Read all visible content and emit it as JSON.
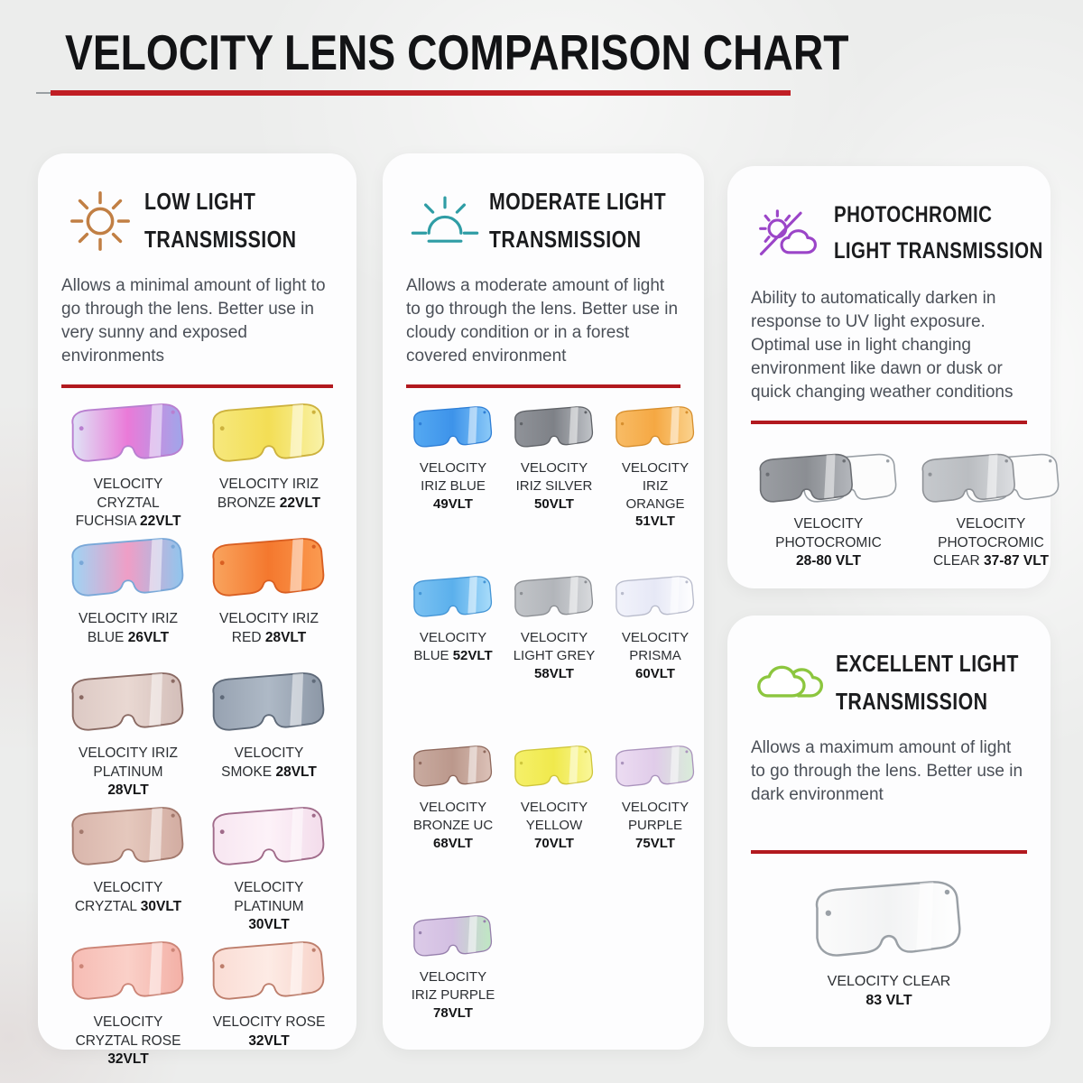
{
  "title": "VELOCITY LENS COMPARISON CHART",
  "accent_red": "#b2191f",
  "panels": [
    {
      "id": "low-light",
      "icon": "sun-icon",
      "icon_color": "#c17f44",
      "heading_lines": [
        "LOW LIGHT",
        "TRANSMISSION"
      ],
      "description": "Allows a minimal amount of light to go through the lens. Better use in very sunny and exposed environments",
      "columns": 2,
      "lenses": [
        {
          "name": "VELOCITY CRYZTAL FUCHSIA",
          "vlt": "22VLT",
          "fill": [
            "#dfe4f6",
            "#ea7ad8",
            "#9fa6ea"
          ],
          "outline": "#b97fd0"
        },
        {
          "name": "VELOCITY IRIZ BRONZE",
          "vlt": "22VLT",
          "fill": [
            "#f6e87e",
            "#f3de55",
            "#f9f2a8"
          ],
          "outline": "#cdb23e"
        },
        {
          "name": "VELOCITY IRIZ BLUE",
          "vlt": "26VLT",
          "fill": [
            "#9fd4f4",
            "#ef9ec6",
            "#8fc6ee"
          ],
          "outline": "#7aa8d8"
        },
        {
          "name": "VELOCITY IRIZ RED",
          "vlt": "28VLT",
          "fill": [
            "#f9a45e",
            "#f4782e",
            "#fb9b51"
          ],
          "outline": "#d95f22"
        },
        {
          "name": "VELOCITY IRIZ PLATINUM",
          "vlt": "28VLT",
          "fill": [
            "#dcc9c4",
            "#e9d8d2",
            "#d3beb9"
          ],
          "outline": "#8a6a63"
        },
        {
          "name": "VELOCITY SMOKE",
          "vlt": "28VLT",
          "fill": [
            "#97a2b1",
            "#aeb9c6",
            "#8c97a6"
          ],
          "outline": "#5f6a79"
        },
        {
          "name": "VELOCITY CRYZTAL",
          "vlt": "30VLT",
          "fill": [
            "#d9b6ac",
            "#e5c8bd",
            "#d2aca1"
          ],
          "outline": "#a3796d"
        },
        {
          "name": "VELOCITY PLATINUM",
          "vlt": "30VLT",
          "fill": [
            "#f7e6f1",
            "#fdf2f8",
            "#f3dceb"
          ],
          "outline": "#a06b8a"
        },
        {
          "name": "VELOCITY CRYZTAL ROSE",
          "vlt": "32VLT",
          "fill": [
            "#f6bcb4",
            "#fad0c8",
            "#f3b0a6"
          ],
          "outline": "#cc8577"
        },
        {
          "name": "VELOCITY ROSE",
          "vlt": "32VLT",
          "fill": [
            "#fadcd4",
            "#fdebe5",
            "#f7d2c8"
          ],
          "outline": "#bd7e6c"
        }
      ]
    },
    {
      "id": "moderate-light",
      "icon": "sunrise-icon",
      "icon_color": "#2f9da5",
      "heading_lines": [
        "MODERATE LIGHT",
        "TRANSMISSION"
      ],
      "description": "Allows a moderate amount of light to go through the lens. Better use in cloudy condition or in a forest covered environment",
      "columns": 3,
      "lenses": [
        {
          "name": "VELOCITY IRIZ BLUE",
          "vlt": "49VLT",
          "fill": [
            "#55a9f2",
            "#3d93ea",
            "#8ccaf8"
          ],
          "outline": "#2f7fd6"
        },
        {
          "name": "VELOCITY IRIZ SILVER",
          "vlt": "50VLT",
          "fill": [
            "#909399",
            "#7e8187",
            "#c0c3c8"
          ],
          "outline": "#606368"
        },
        {
          "name": "VELOCITY IRIZ ORANGE",
          "vlt": "51VLT",
          "fill": [
            "#f8bc66",
            "#f5a843",
            "#fbd38e"
          ],
          "outline": "#d78f2e"
        },
        {
          "name": "VELOCITY BLUE",
          "vlt": "52VLT",
          "fill": [
            "#7cc2f2",
            "#5bb0ec",
            "#a9dcfa"
          ],
          "outline": "#4596d6"
        },
        {
          "name": "VELOCITY LIGHT GREY",
          "vlt": "58VLT",
          "fill": [
            "#c2c5c9",
            "#b2b5ba",
            "#d8dadd"
          ],
          "outline": "#8c8f94"
        },
        {
          "name": "VELOCITY PRISMA",
          "vlt": "60VLT",
          "fill": [
            "#f2f3fb",
            "#e6e8f6",
            "#ffffff"
          ],
          "outline": "#b9bccc"
        },
        {
          "name": "VELOCITY BRONZE UC",
          "vlt": "68VLT",
          "fill": [
            "#c9aba0",
            "#bb988c",
            "#dcc2b8"
          ],
          "outline": "#8f695d"
        },
        {
          "name": "VELOCITY YELLOW",
          "vlt": "70VLT",
          "fill": [
            "#f5f06a",
            "#f0e94c",
            "#faf79a"
          ],
          "outline": "#cfc63c"
        },
        {
          "name": "VELOCITY PURPLE",
          "vlt": "75VLT",
          "fill": [
            "#ecdcf2",
            "#e0cce9",
            "#d9edd9"
          ],
          "outline": "#ab94bd"
        },
        {
          "name": "VELOCITY IRIZ PURPLE",
          "vlt": "78VLT",
          "fill": [
            "#dccbe8",
            "#d3bfe2",
            "#bfe8c3"
          ],
          "outline": "#9780ad"
        }
      ]
    },
    {
      "id": "photochromic",
      "icon": "photochromic-sun-cloud-icon",
      "icon_color": "#9b45c8",
      "heading_lines": [
        "PHOTOCHROMIC",
        "LIGHT TRANSMISSION"
      ],
      "description": "Ability to automatically darken in response to UV light exposure. Optimal use in light changing environment like dawn or dusk or quick changing weather conditions",
      "columns": 2,
      "lenses": [
        {
          "name": "VELOCITY PHOTOCROMIC",
          "vlt": "28-80 VLT",
          "shape": "double",
          "fill": [
            "#9b9ea3",
            "#8b8e93",
            "#b4b7bc"
          ],
          "outline": "#6b6e73"
        },
        {
          "name": "VELOCITY PHOTOCROMIC CLEAR",
          "vlt": "37-87 VLT",
          "shape": "double",
          "fill": [
            "#c6c9cd",
            "#babdc1",
            "#dcdee1"
          ],
          "outline": "#8e9196"
        }
      ]
    },
    {
      "id": "excellent-light",
      "icon": "clouds-icon",
      "icon_color": "#8cc63e",
      "heading_lines": [
        "EXCELLENT LIGHT",
        "TRANSMISSION"
      ],
      "description": "Allows a maximum amount of light to go through the lens. Better use in dark environment",
      "columns": 1,
      "lenses": [
        {
          "name": "VELOCITY CLEAR",
          "vlt": "83 VLT",
          "fill": [
            "#fbfbfb",
            "#f2f3f4",
            "#ffffff"
          ],
          "outline": "#9aa0a6"
        }
      ]
    }
  ]
}
